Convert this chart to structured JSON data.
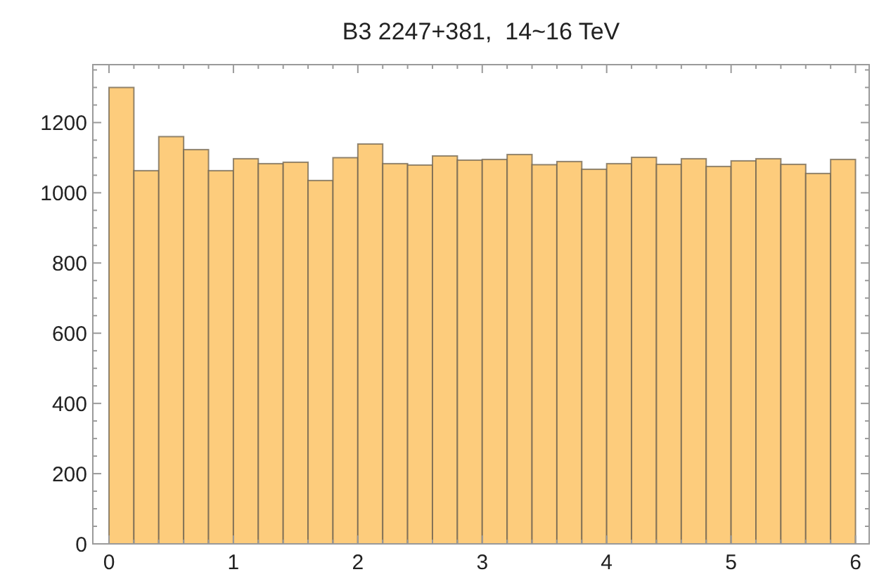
{
  "chart_data": {
    "type": "histogram",
    "title": "B3 2247+381,  14~16 TeV",
    "bins": [
      0,
      0.2,
      0.4,
      0.6,
      0.8,
      1,
      1.2,
      1.4,
      1.6,
      1.8,
      2,
      2.2,
      2.4,
      2.6,
      2.8,
      3,
      3.2,
      3.4,
      3.6,
      3.8,
      4,
      4.2,
      4.4,
      4.6,
      4.8,
      5,
      5.2,
      5.4,
      5.6,
      5.8,
      6
    ],
    "values": [
      1300,
      1063,
      1160,
      1123,
      1063,
      1097,
      1083,
      1087,
      1035,
      1100,
      1139,
      1083,
      1079,
      1105,
      1093,
      1095,
      1109,
      1080,
      1089,
      1067,
      1083,
      1101,
      1081,
      1097,
      1075,
      1091,
      1097,
      1081,
      1055,
      1095
    ],
    "color": "#fdcc7c",
    "xlim": [
      -0.13,
      6.11
    ],
    "xticks": [
      0,
      {
        "value": 0.2,
        "label": null
      },
      {
        "value": 0.4,
        "label": null
      },
      {
        "value": 0.6,
        "label": null
      },
      {
        "value": 0.8,
        "label": null
      },
      1,
      {
        "value": 1.2,
        "label": null
      },
      {
        "value": 1.4,
        "label": null
      },
      {
        "value": 1.6,
        "label": null
      },
      {
        "value": 1.8,
        "label": null
      },
      2,
      {
        "value": 2.2,
        "label": null
      },
      {
        "value": 2.4,
        "label": null
      },
      {
        "value": 2.6,
        "label": null
      },
      {
        "value": 2.8,
        "label": null
      },
      3,
      {
        "value": 3.2,
        "label": null
      },
      {
        "value": 3.4,
        "label": null
      },
      {
        "value": 3.6,
        "label": null
      },
      {
        "value": 3.8,
        "label": null
      },
      4,
      {
        "value": 4.2,
        "label": null
      },
      {
        "value": 4.4,
        "label": null
      },
      {
        "value": 4.6,
        "label": null
      },
      {
        "value": 4.8,
        "label": null
      },
      5,
      {
        "value": 5.2,
        "label": null
      },
      {
        "value": 5.4,
        "label": null
      },
      {
        "value": 5.6,
        "label": null
      },
      {
        "value": 5.8,
        "label": null
      },
      6
    ],
    "ylim": [
      0,
      1365
    ],
    "yticks": [
      0,
      {
        "value": 50,
        "label": null
      },
      {
        "value": 100,
        "label": null
      },
      {
        "value": 150,
        "label": null
      },
      200,
      {
        "value": 250,
        "label": null
      },
      {
        "value": 300,
        "label": null
      },
      {
        "value": 350,
        "label": null
      },
      400,
      {
        "value": 450,
        "label": null
      },
      {
        "value": 500,
        "label": null
      },
      {
        "value": 550,
        "label": null
      },
      600,
      {
        "value": 650,
        "label": null
      },
      {
        "value": 700,
        "label": null
      },
      {
        "value": 750,
        "label": null
      },
      800,
      {
        "value": 850,
        "label": null
      },
      {
        "value": 900,
        "label": null
      },
      {
        "value": 950,
        "label": null
      },
      1000,
      {
        "value": 1050,
        "label": null
      },
      {
        "value": 1100,
        "label": null
      },
      {
        "value": 1150,
        "label": null
      },
      1200,
      {
        "value": 1250,
        "label": null
      },
      {
        "value": 1300,
        "label": null
      },
      {
        "value": 1350,
        "label": null
      }
    ]
  }
}
